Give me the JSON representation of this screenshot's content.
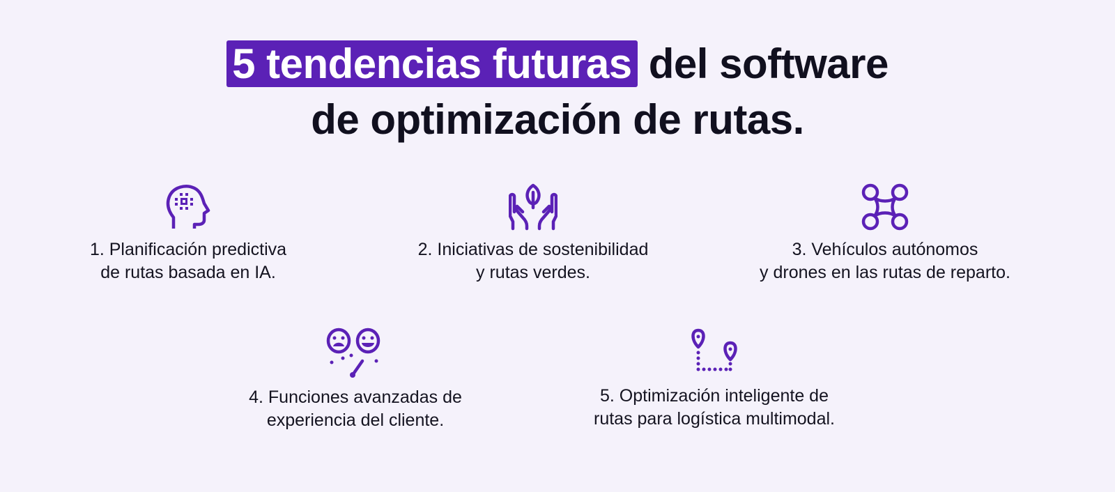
{
  "title": {
    "highlight": "5 tendencias futuras",
    "rest_line1": " del software",
    "line2": "de optimización de rutas."
  },
  "accent_color": "#5b21b6",
  "items": [
    {
      "icon": "ai-head-icon",
      "line1": "1. Planificación predictiva",
      "line2": "de rutas basada en IA."
    },
    {
      "icon": "hands-leaf-icon",
      "line1": "2. Iniciativas de sostenibilidad",
      "line2": "y rutas verdes."
    },
    {
      "icon": "drone-icon",
      "line1": "3. Vehículos autónomos",
      "line2": "y drones en las rutas de reparto."
    },
    {
      "icon": "customer-feedback-icon",
      "line1": "4. Funciones avanzadas de",
      "line2": "experiencia del cliente."
    },
    {
      "icon": "multimodal-route-icon",
      "line1": "5. Optimización inteligente de",
      "line2": "rutas para logística multimodal."
    }
  ]
}
